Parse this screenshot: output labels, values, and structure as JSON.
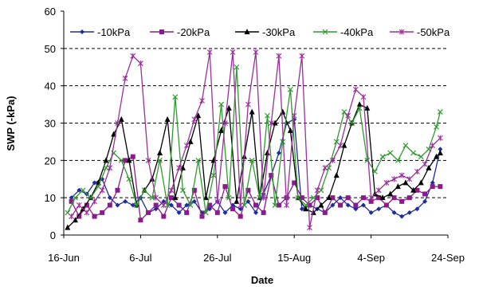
{
  "chart_data": {
    "type": "line",
    "title": "",
    "xlabel": "Date",
    "ylabel": "SWP (-kPa)",
    "ylim": [
      0,
      60
    ],
    "yticks": [
      "0",
      "10",
      "20",
      "30",
      "40",
      "50",
      "60"
    ],
    "xlim": [
      "2008-06-16",
      "2008-09-24"
    ],
    "xticks": [
      {
        "label": "16-Jun",
        "date": "2008-06-16"
      },
      {
        "label": "6-Jul",
        "date": "2008-07-06"
      },
      {
        "label": "26-Jul",
        "date": "2008-07-26"
      },
      {
        "label": "15-Aug",
        "date": "2008-08-15"
      },
      {
        "label": "4-Sep",
        "date": "2008-09-04"
      },
      {
        "label": "24-Sep",
        "date": "2008-09-24"
      }
    ],
    "grid": "horizontal dashed at 10, 20, 30, 40, 50",
    "legend_position": "top",
    "series": [
      {
        "name": "-10kPa",
        "color": "#1f2d9c",
        "marker": "diamond",
        "points": [
          [
            "2008-06-18",
            10
          ],
          [
            "2008-06-20",
            12
          ],
          [
            "2008-06-22",
            11
          ],
          [
            "2008-06-24",
            14
          ],
          [
            "2008-06-26",
            15
          ],
          [
            "2008-06-28",
            10
          ],
          [
            "2008-06-30",
            8
          ],
          [
            "2008-07-02",
            9
          ],
          [
            "2008-07-04",
            8
          ],
          [
            "2008-07-06",
            10
          ],
          [
            "2008-07-08",
            6
          ],
          [
            "2008-07-10",
            7
          ],
          [
            "2008-07-12",
            9
          ],
          [
            "2008-07-14",
            8
          ],
          [
            "2008-07-16",
            6
          ],
          [
            "2008-07-18",
            8
          ],
          [
            "2008-07-20",
            9
          ],
          [
            "2008-07-22",
            6
          ],
          [
            "2008-07-24",
            7
          ],
          [
            "2008-07-26",
            9
          ],
          [
            "2008-07-28",
            6
          ],
          [
            "2008-07-30",
            8
          ],
          [
            "2008-08-01",
            7
          ],
          [
            "2008-08-03",
            9
          ],
          [
            "2008-08-05",
            6
          ],
          [
            "2008-08-07",
            11
          ],
          [
            "2008-08-09",
            16
          ],
          [
            "2008-08-11",
            22
          ],
          [
            "2008-08-13",
            30
          ],
          [
            "2008-08-15",
            31
          ],
          [
            "2008-08-17",
            7
          ],
          [
            "2008-08-19",
            8
          ],
          [
            "2008-08-21",
            7
          ],
          [
            "2008-08-23",
            6
          ],
          [
            "2008-08-25",
            8
          ],
          [
            "2008-08-27",
            10
          ],
          [
            "2008-08-29",
            8
          ],
          [
            "2008-08-31",
            7
          ],
          [
            "2008-09-02",
            8
          ],
          [
            "2008-09-04",
            6
          ],
          [
            "2008-09-06",
            7
          ],
          [
            "2008-09-08",
            8
          ],
          [
            "2008-09-10",
            6
          ],
          [
            "2008-09-12",
            5
          ],
          [
            "2008-09-14",
            6
          ],
          [
            "2008-09-16",
            7
          ],
          [
            "2008-09-18",
            9
          ],
          [
            "2008-09-20",
            14
          ],
          [
            "2008-09-22",
            23
          ]
        ]
      },
      {
        "name": "-20kPa",
        "color": "#8b1a8c",
        "marker": "square",
        "points": [
          [
            "2008-06-18",
            9
          ],
          [
            "2008-06-20",
            5
          ],
          [
            "2008-06-22",
            8
          ],
          [
            "2008-06-24",
            5
          ],
          [
            "2008-06-26",
            6
          ],
          [
            "2008-06-28",
            8
          ],
          [
            "2008-06-30",
            12
          ],
          [
            "2008-07-02",
            20
          ],
          [
            "2008-07-04",
            21
          ],
          [
            "2008-07-06",
            4
          ],
          [
            "2008-07-08",
            6
          ],
          [
            "2008-07-10",
            8
          ],
          [
            "2008-07-12",
            5
          ],
          [
            "2008-07-14",
            10
          ],
          [
            "2008-07-16",
            8
          ],
          [
            "2008-07-18",
            6
          ],
          [
            "2008-07-20",
            12
          ],
          [
            "2008-07-22",
            5
          ],
          [
            "2008-07-24",
            8
          ],
          [
            "2008-07-26",
            6
          ],
          [
            "2008-07-28",
            13
          ],
          [
            "2008-07-30",
            7
          ],
          [
            "2008-08-01",
            5
          ],
          [
            "2008-08-03",
            12
          ],
          [
            "2008-08-05",
            8
          ],
          [
            "2008-08-07",
            6
          ],
          [
            "2008-08-09",
            16
          ],
          [
            "2008-08-11",
            8
          ],
          [
            "2008-08-13",
            10
          ],
          [
            "2008-08-15",
            14
          ],
          [
            "2008-08-17",
            10
          ],
          [
            "2008-08-19",
            8
          ],
          [
            "2008-08-21",
            10
          ],
          [
            "2008-08-23",
            6
          ],
          [
            "2008-08-25",
            10
          ],
          [
            "2008-08-27",
            8
          ],
          [
            "2008-08-29",
            10
          ],
          [
            "2008-08-31",
            8
          ],
          [
            "2008-09-02",
            10
          ],
          [
            "2008-09-04",
            9
          ],
          [
            "2008-09-06",
            10
          ],
          [
            "2008-09-08",
            8
          ],
          [
            "2008-09-10",
            10
          ],
          [
            "2008-09-12",
            9
          ],
          [
            "2008-09-14",
            10
          ],
          [
            "2008-09-16",
            12
          ],
          [
            "2008-09-18",
            11
          ],
          [
            "2008-09-20",
            13
          ],
          [
            "2008-09-22",
            13
          ]
        ]
      },
      {
        "name": "-30kPa",
        "color": "#000000",
        "marker": "triangle",
        "points": [
          [
            "2008-06-17",
            2
          ],
          [
            "2008-06-19",
            4
          ],
          [
            "2008-06-21",
            7
          ],
          [
            "2008-06-23",
            10
          ],
          [
            "2008-06-25",
            14
          ],
          [
            "2008-06-27",
            20
          ],
          [
            "2008-06-29",
            27
          ],
          [
            "2008-07-01",
            31
          ],
          [
            "2008-07-03",
            20
          ],
          [
            "2008-07-05",
            8
          ],
          [
            "2008-07-07",
            12
          ],
          [
            "2008-07-09",
            15
          ],
          [
            "2008-07-11",
            22
          ],
          [
            "2008-07-13",
            31
          ],
          [
            "2008-07-15",
            10
          ],
          [
            "2008-07-17",
            18
          ],
          [
            "2008-07-19",
            25
          ],
          [
            "2008-07-21",
            32
          ],
          [
            "2008-07-23",
            10
          ],
          [
            "2008-07-25",
            20
          ],
          [
            "2008-07-27",
            28
          ],
          [
            "2008-07-29",
            34
          ],
          [
            "2008-07-31",
            9
          ],
          [
            "2008-08-02",
            21
          ],
          [
            "2008-08-04",
            33
          ],
          [
            "2008-08-06",
            10
          ],
          [
            "2008-08-08",
            22
          ],
          [
            "2008-08-10",
            30
          ],
          [
            "2008-08-12",
            33
          ],
          [
            "2008-08-14",
            28
          ],
          [
            "2008-08-16",
            10
          ],
          [
            "2008-08-18",
            7
          ],
          [
            "2008-08-20",
            6
          ],
          [
            "2008-08-22",
            8
          ],
          [
            "2008-08-24",
            10
          ],
          [
            "2008-08-26",
            16
          ],
          [
            "2008-08-28",
            24
          ],
          [
            "2008-08-30",
            30
          ],
          [
            "2008-09-01",
            35
          ],
          [
            "2008-09-03",
            34
          ],
          [
            "2008-09-05",
            11
          ],
          [
            "2008-09-07",
            10
          ],
          [
            "2008-09-09",
            11
          ],
          [
            "2008-09-11",
            13
          ],
          [
            "2008-09-13",
            14
          ],
          [
            "2008-09-15",
            12
          ],
          [
            "2008-09-17",
            14
          ],
          [
            "2008-09-19",
            18
          ],
          [
            "2008-09-21",
            21
          ],
          [
            "2008-09-22",
            22
          ]
        ]
      },
      {
        "name": "-40kPa",
        "color": "#2f9a2f",
        "marker": "x",
        "points": [
          [
            "2008-06-17",
            6
          ],
          [
            "2008-06-19",
            10
          ],
          [
            "2008-06-21",
            12
          ],
          [
            "2008-06-23",
            10
          ],
          [
            "2008-06-25",
            13
          ],
          [
            "2008-06-27",
            18
          ],
          [
            "2008-06-29",
            22
          ],
          [
            "2008-07-01",
            20
          ],
          [
            "2008-07-03",
            15
          ],
          [
            "2008-07-05",
            8
          ],
          [
            "2008-07-07",
            12
          ],
          [
            "2008-07-09",
            10
          ],
          [
            "2008-07-11",
            20
          ],
          [
            "2008-07-13",
            8
          ],
          [
            "2008-07-15",
            37
          ],
          [
            "2008-07-17",
            12
          ],
          [
            "2008-07-19",
            8
          ],
          [
            "2008-07-21",
            20
          ],
          [
            "2008-07-23",
            6
          ],
          [
            "2008-07-25",
            16
          ],
          [
            "2008-07-27",
            35
          ],
          [
            "2008-07-29",
            10
          ],
          [
            "2008-07-31",
            45
          ],
          [
            "2008-08-02",
            8
          ],
          [
            "2008-08-04",
            20
          ],
          [
            "2008-08-06",
            10
          ],
          [
            "2008-08-08",
            32
          ],
          [
            "2008-08-10",
            8
          ],
          [
            "2008-08-12",
            25
          ],
          [
            "2008-08-14",
            39
          ],
          [
            "2008-08-16",
            10
          ],
          [
            "2008-08-18",
            8
          ],
          [
            "2008-08-20",
            10
          ],
          [
            "2008-08-22",
            12
          ],
          [
            "2008-08-24",
            18
          ],
          [
            "2008-08-26",
            25
          ],
          [
            "2008-08-28",
            33
          ],
          [
            "2008-08-30",
            30
          ],
          [
            "2008-09-01",
            34
          ],
          [
            "2008-09-03",
            20
          ],
          [
            "2008-09-05",
            17
          ],
          [
            "2008-09-07",
            21
          ],
          [
            "2008-09-09",
            22
          ],
          [
            "2008-09-11",
            20
          ],
          [
            "2008-09-13",
            24
          ],
          [
            "2008-09-15",
            22
          ],
          [
            "2008-09-17",
            21
          ],
          [
            "2008-09-19",
            23
          ],
          [
            "2008-09-21",
            29
          ],
          [
            "2008-09-22",
            33
          ]
        ]
      },
      {
        "name": "-50kPa",
        "color": "#9b2f9b",
        "marker": "asterisk",
        "points": [
          [
            "2008-06-18",
            5
          ],
          [
            "2008-06-20",
            8
          ],
          [
            "2008-06-22",
            6
          ],
          [
            "2008-06-24",
            9
          ],
          [
            "2008-06-26",
            12
          ],
          [
            "2008-06-28",
            18
          ],
          [
            "2008-06-30",
            30
          ],
          [
            "2008-07-02",
            42
          ],
          [
            "2008-07-04",
            48
          ],
          [
            "2008-07-06",
            46
          ],
          [
            "2008-07-08",
            20
          ],
          [
            "2008-07-10",
            10
          ],
          [
            "2008-07-12",
            8
          ],
          [
            "2008-07-14",
            12
          ],
          [
            "2008-07-16",
            18
          ],
          [
            "2008-07-18",
            24
          ],
          [
            "2008-07-20",
            31
          ],
          [
            "2008-07-22",
            36
          ],
          [
            "2008-07-24",
            49
          ],
          [
            "2008-07-26",
            9
          ],
          [
            "2008-07-28",
            30
          ],
          [
            "2008-07-30",
            49
          ],
          [
            "2008-08-01",
            8
          ],
          [
            "2008-08-03",
            35
          ],
          [
            "2008-08-05",
            49
          ],
          [
            "2008-08-07",
            10
          ],
          [
            "2008-08-09",
            30
          ],
          [
            "2008-08-11",
            48
          ],
          [
            "2008-08-13",
            8
          ],
          [
            "2008-08-15",
            32
          ],
          [
            "2008-08-17",
            48
          ],
          [
            "2008-08-19",
            2
          ],
          [
            "2008-08-21",
            12
          ],
          [
            "2008-08-23",
            18
          ],
          [
            "2008-08-25",
            20
          ],
          [
            "2008-08-27",
            24
          ],
          [
            "2008-08-29",
            32
          ],
          [
            "2008-08-31",
            39
          ],
          [
            "2008-09-02",
            37
          ],
          [
            "2008-09-04",
            10
          ],
          [
            "2008-09-06",
            12
          ],
          [
            "2008-09-08",
            14
          ],
          [
            "2008-09-10",
            15
          ],
          [
            "2008-09-12",
            16
          ],
          [
            "2008-09-14",
            15
          ],
          [
            "2008-09-16",
            17
          ],
          [
            "2008-09-18",
            19
          ],
          [
            "2008-09-20",
            24
          ],
          [
            "2008-09-22",
            26
          ]
        ]
      }
    ]
  }
}
